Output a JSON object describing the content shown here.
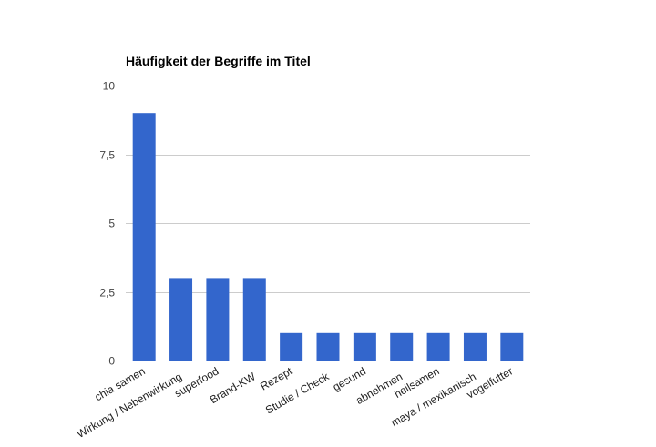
{
  "chart_data": {
    "type": "bar",
    "title": "Häufigkeit der Begriffe im Titel",
    "xlabel": "",
    "ylabel": "",
    "ylim": [
      0,
      10
    ],
    "yticks": [
      0,
      2.5,
      5,
      7.5,
      10
    ],
    "ytick_labels": [
      "0",
      "2,5",
      "5",
      "7,5",
      "10"
    ],
    "grid": true,
    "legend": "none",
    "color": "#3366cc",
    "categories": [
      "chia samen",
      "Wirkung / Nebenwirkung",
      "superfood",
      "Brand-KW",
      "Rezept",
      "Studie / Check",
      "gesund",
      "abnehmen",
      "heilsamen",
      "maya / mexikanisch",
      "vogelfutter"
    ],
    "values": [
      9,
      3,
      3,
      3,
      1,
      1,
      1,
      1,
      1,
      1,
      1
    ]
  }
}
